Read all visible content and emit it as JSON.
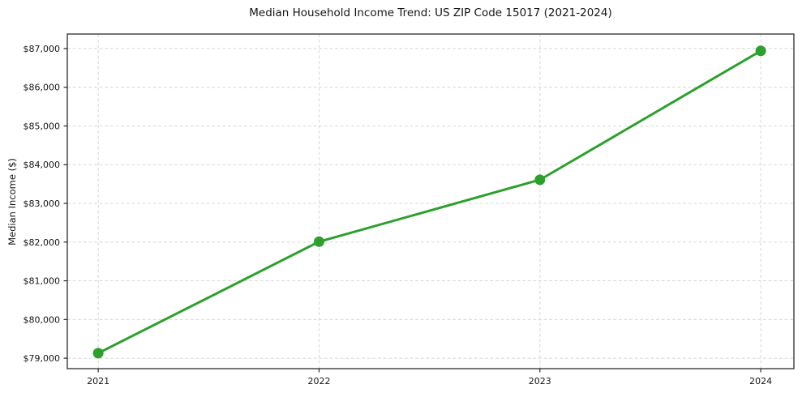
{
  "chart_data": {
    "type": "line",
    "title": "Median Household Income Trend: US ZIP Code 15017 (2021-2024)",
    "xlabel": "",
    "ylabel": "Median Income ($)",
    "x": [
      2021,
      2022,
      2023,
      2024
    ],
    "xtick_labels": [
      "2021",
      "2022",
      "2023",
      "2024"
    ],
    "values": [
      79130,
      82010,
      83610,
      86940
    ],
    "yticks": [
      79000,
      80000,
      81000,
      82000,
      83000,
      84000,
      85000,
      86000,
      87000
    ],
    "ytick_labels": [
      "$79,000",
      "$80,000",
      "$81,000",
      "$82,000",
      "$83,000",
      "$84,000",
      "$85,000",
      "$86,000",
      "$87,000"
    ],
    "xlim": [
      2020.86,
      2024.15
    ],
    "ylim": [
      78730,
      87375
    ],
    "grid": true,
    "grid_style": "dashed",
    "legend_position": "none",
    "line_color": "#2ca02c",
    "marker": "circle",
    "marker_size": 6.5,
    "background_color": "#ffffff",
    "grid_color": "#d8d8d8",
    "frame_color": "#2b2b2b",
    "text_color": "#151515"
  }
}
